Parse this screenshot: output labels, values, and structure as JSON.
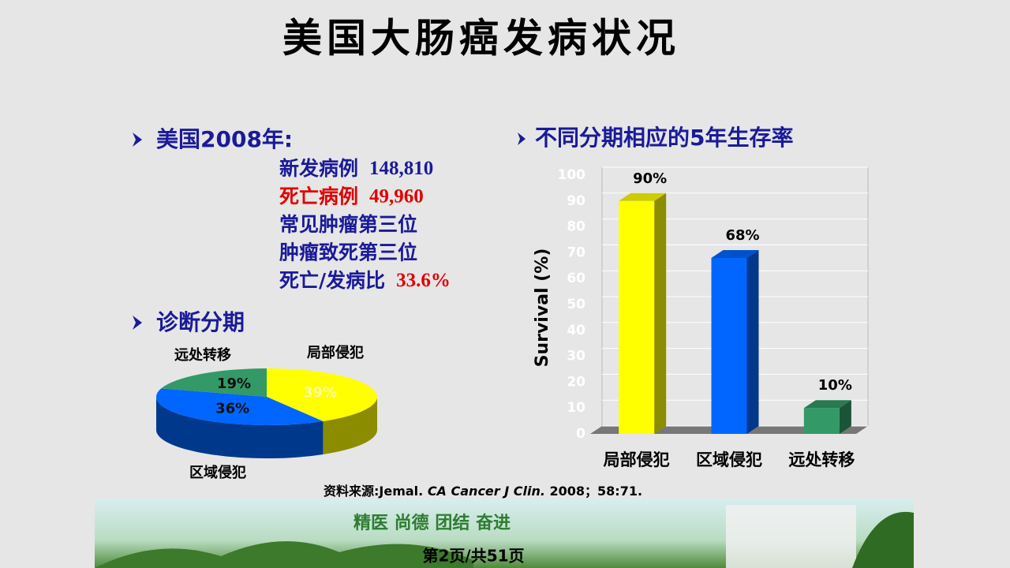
{
  "title": "美国大肠癌发病状况",
  "stats": {
    "heading": "美国2008年:",
    "lines": [
      {
        "label": "新发病例",
        "value": "148,810"
      },
      {
        "label": "死亡病例",
        "value": "49,960"
      },
      {
        "label": "常见肿瘤第三位"
      },
      {
        "label": "肿瘤致死第三位"
      },
      {
        "label": "死亡/发病比",
        "value": "33.6%"
      }
    ]
  },
  "chart_data": [
    {
      "type": "pie",
      "title": "诊断分期",
      "categories": [
        "局部侵犯",
        "区域侵犯",
        "远处转移"
      ],
      "values": [
        39,
        36,
        19
      ],
      "value_labels": [
        "39%",
        "36%",
        "19%"
      ],
      "colors": [
        "#ffff00",
        "#0066ff",
        "#339966"
      ]
    },
    {
      "type": "bar",
      "title": "不同分期相应的5年生存率",
      "y_label": "Survival (%)",
      "categories": [
        "局部侵犯",
        "区域侵犯",
        "远处转移"
      ],
      "values": [
        90,
        68,
        10
      ],
      "value_labels": [
        "90%",
        "68%",
        "10%"
      ],
      "colors": [
        "#ffff00",
        "#0066ff",
        "#339966"
      ],
      "ylim": [
        0,
        100
      ],
      "yticks": [
        0,
        10,
        20,
        30,
        40,
        50,
        60,
        70,
        80,
        90,
        100
      ],
      "grid": true
    }
  ],
  "source": [
    "资料来源:Jemal. ",
    "CA Cancer J Clin.",
    " 2008；58:71."
  ],
  "footer": {
    "motto": "精医  尚德  团结  奋进",
    "page": "第2页/共51页"
  }
}
